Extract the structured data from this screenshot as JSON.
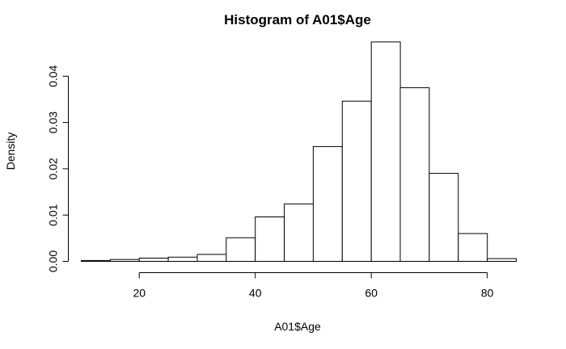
{
  "chart_data": {
    "type": "bar",
    "subtype": "histogram",
    "title": "Histogram of A01$Age",
    "xlabel": "A01$Age",
    "ylabel": "Density",
    "bin_width": 5,
    "bins": [
      {
        "start": 10,
        "end": 15,
        "density": 0.0002
      },
      {
        "start": 15,
        "end": 20,
        "density": 0.0004
      },
      {
        "start": 20,
        "end": 25,
        "density": 0.0007
      },
      {
        "start": 25,
        "end": 30,
        "density": 0.0009
      },
      {
        "start": 30,
        "end": 35,
        "density": 0.0015
      },
      {
        "start": 35,
        "end": 40,
        "density": 0.0051
      },
      {
        "start": 40,
        "end": 45,
        "density": 0.0096
      },
      {
        "start": 45,
        "end": 50,
        "density": 0.0124
      },
      {
        "start": 50,
        "end": 55,
        "density": 0.0248
      },
      {
        "start": 55,
        "end": 60,
        "density": 0.0346
      },
      {
        "start": 60,
        "end": 65,
        "density": 0.0474
      },
      {
        "start": 65,
        "end": 70,
        "density": 0.0375
      },
      {
        "start": 70,
        "end": 75,
        "density": 0.019
      },
      {
        "start": 75,
        "end": 80,
        "density": 0.006
      },
      {
        "start": 80,
        "end": 85,
        "density": 0.0006
      }
    ],
    "xlim": [
      10,
      85
    ],
    "ylim": [
      0,
      0.048
    ],
    "x_ticks": [
      20,
      40,
      60,
      80
    ],
    "x_tick_labels": [
      "20",
      "40",
      "60",
      "80"
    ],
    "y_ticks": [
      0,
      0.01,
      0.02,
      0.03,
      0.04
    ],
    "y_tick_labels": [
      "0.00",
      "0.01",
      "0.02",
      "0.03",
      "0.04"
    ],
    "grid": false,
    "legend": "none"
  }
}
